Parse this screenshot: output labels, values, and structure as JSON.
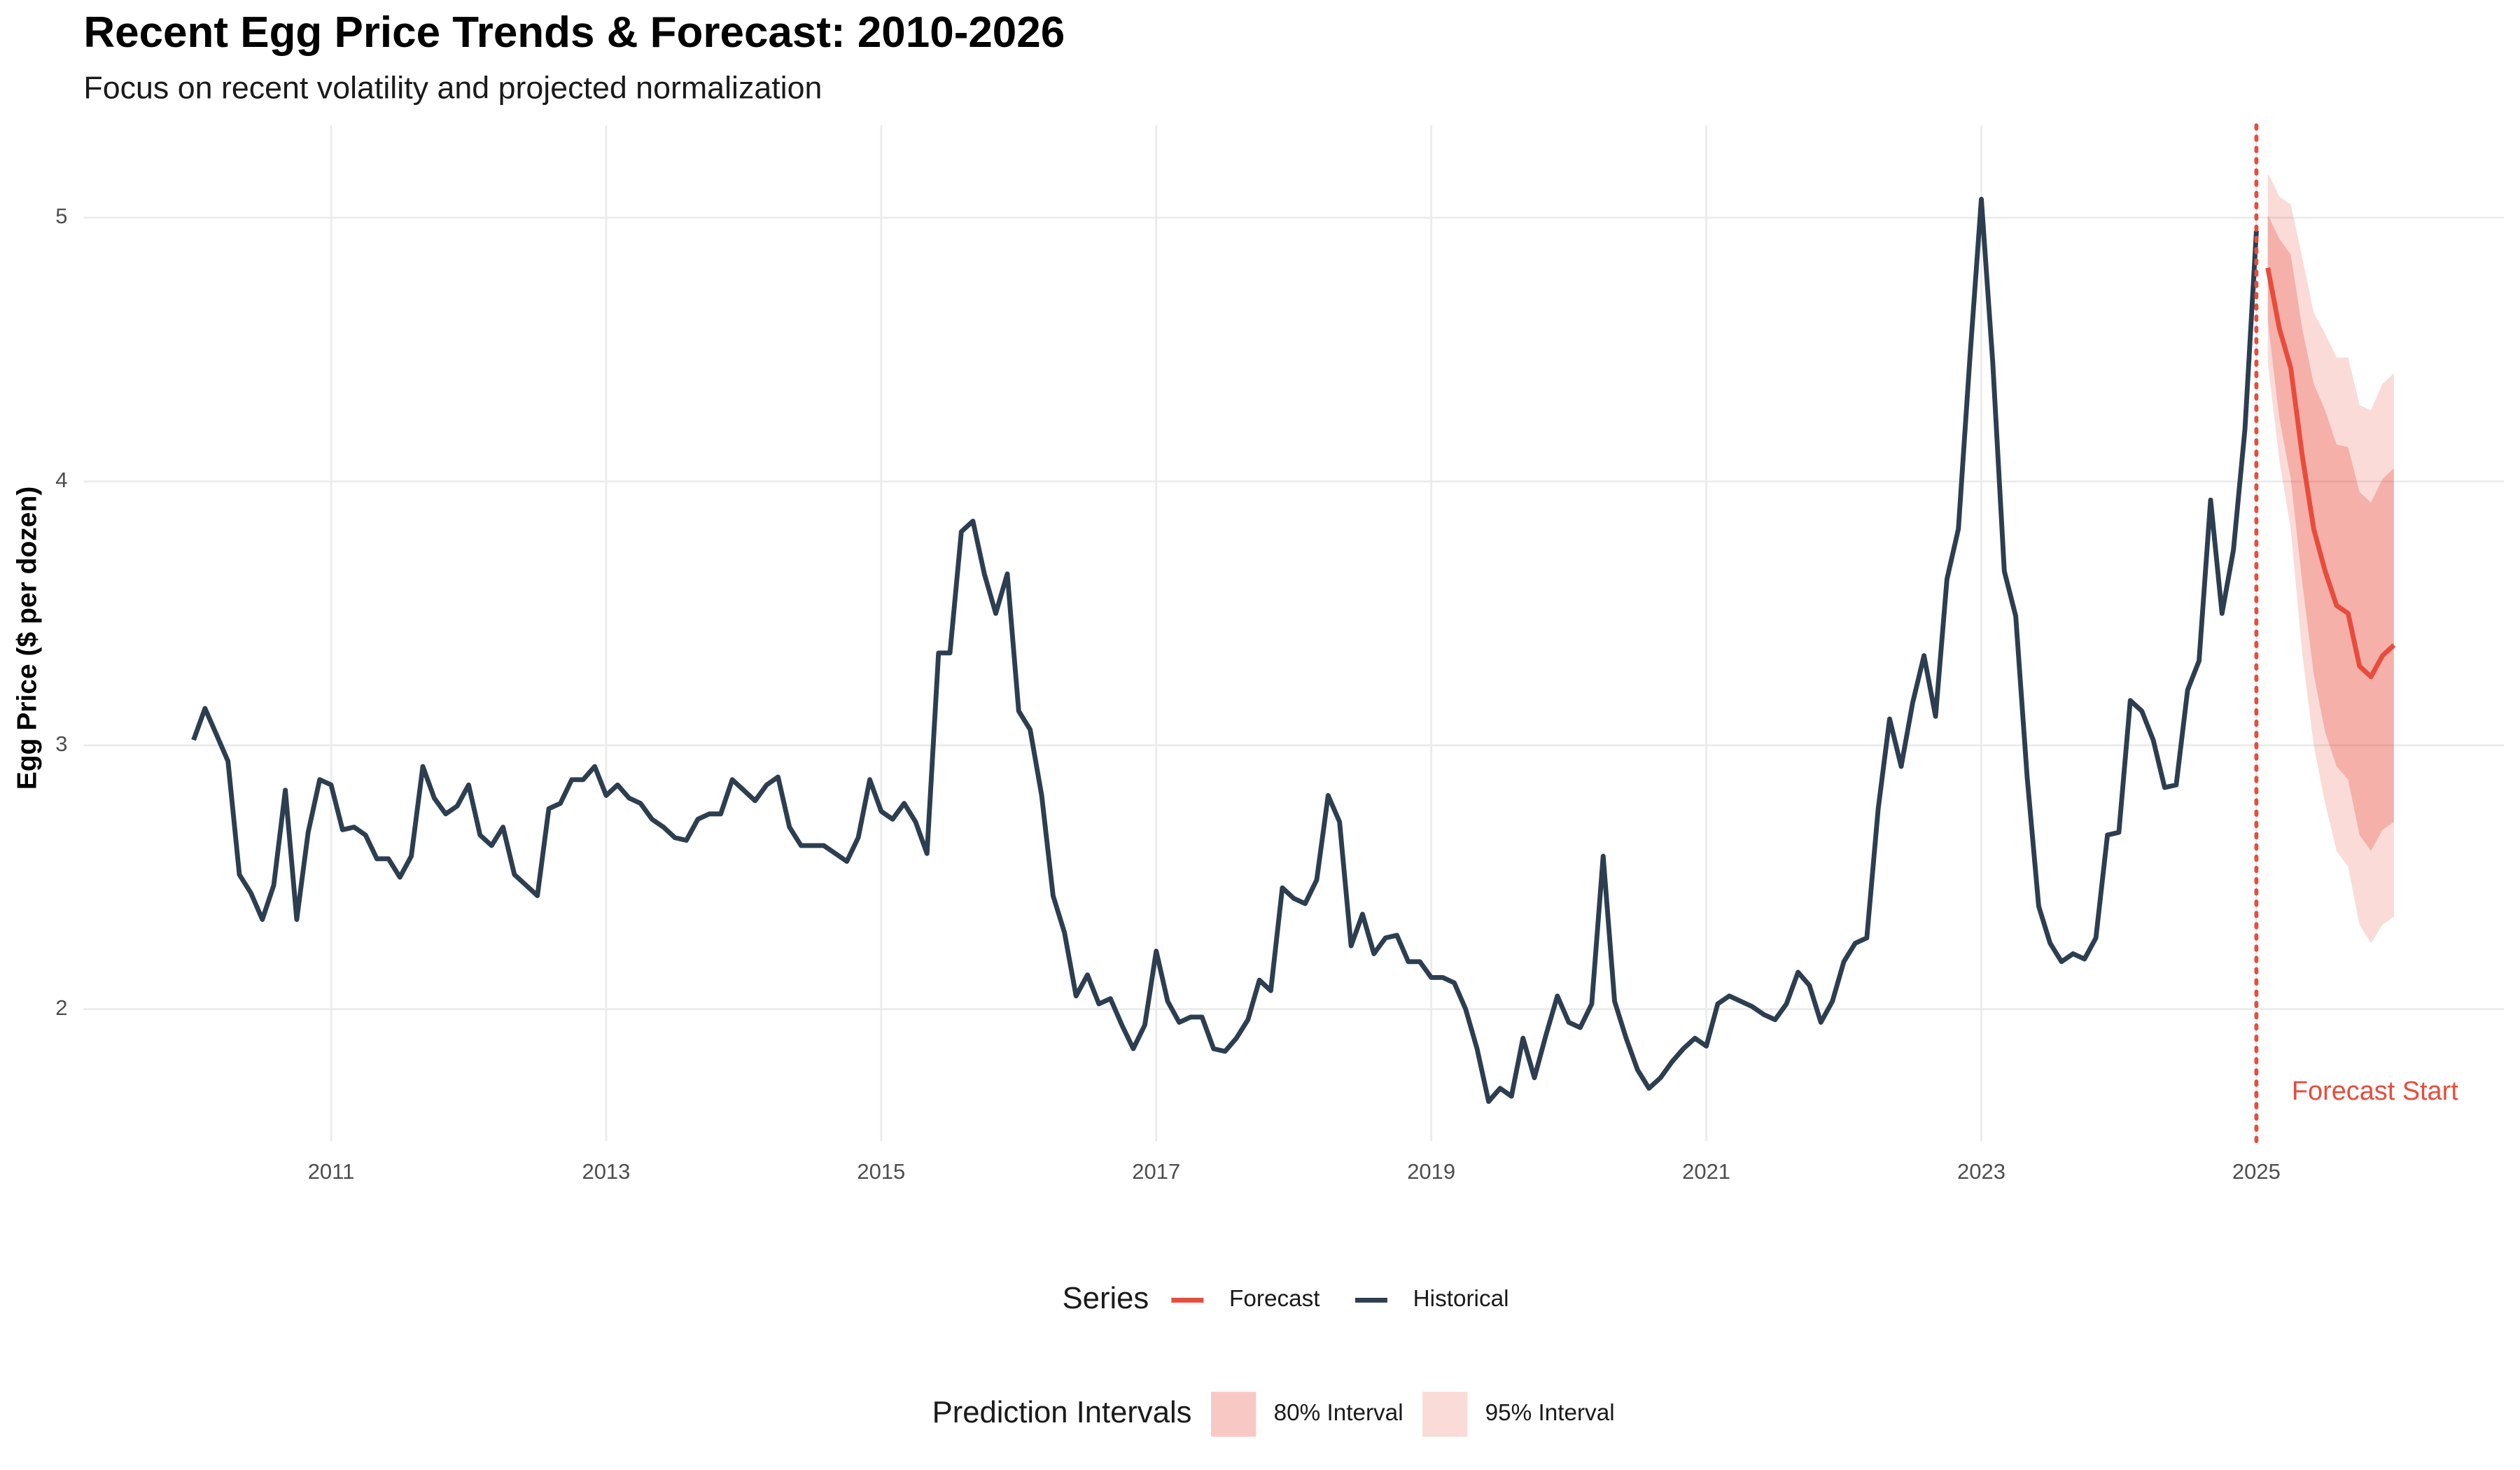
{
  "chart_data": {
    "type": "line",
    "title": "Recent Egg Price Trends & Forecast: 2010-2026",
    "subtitle": "Focus on recent volatility and projected normalization",
    "y_label": "Egg Price ($ per dozen)",
    "xlim": [
      2009.2,
      2026.8
    ],
    "ylim": [
      1.5,
      5.35
    ],
    "xticks": [
      2011,
      2013,
      2015,
      2017,
      2019,
      2021,
      2023,
      2025
    ],
    "yticks": [
      2,
      3,
      4,
      5
    ],
    "grid": true,
    "legend_title": "Series",
    "series": [
      {
        "name": "Forecast",
        "color": "#e74c3c",
        "x": [
          2025.083,
          2025.167,
          2025.25,
          2025.333,
          2025.417,
          2025.5,
          2025.583,
          2025.667,
          2025.75,
          2025.833,
          2025.917,
          2026
        ],
        "values": [
          4.81,
          4.58,
          4.43,
          4.1,
          3.82,
          3.66,
          3.53,
          3.5,
          3.3,
          3.26,
          3.34,
          3.38
        ]
      },
      {
        "name": "Historical",
        "color": "#2c3e50",
        "x": [
          2010,
          2010.083,
          2010.167,
          2010.25,
          2010.333,
          2010.417,
          2010.5,
          2010.583,
          2010.667,
          2010.75,
          2010.833,
          2010.917,
          2011,
          2011.083,
          2011.167,
          2011.25,
          2011.333,
          2011.417,
          2011.5,
          2011.583,
          2011.667,
          2011.75,
          2011.833,
          2011.917,
          2012,
          2012.083,
          2012.167,
          2012.25,
          2012.333,
          2012.417,
          2012.5,
          2012.583,
          2012.667,
          2012.75,
          2012.833,
          2012.917,
          2013,
          2013.083,
          2013.167,
          2013.25,
          2013.333,
          2013.417,
          2013.5,
          2013.583,
          2013.667,
          2013.75,
          2013.833,
          2013.917,
          2014,
          2014.083,
          2014.167,
          2014.25,
          2014.333,
          2014.417,
          2014.5,
          2014.583,
          2014.667,
          2014.75,
          2014.833,
          2014.917,
          2015,
          2015.083,
          2015.167,
          2015.25,
          2015.333,
          2015.417,
          2015.5,
          2015.583,
          2015.667,
          2015.75,
          2015.833,
          2015.917,
          2016,
          2016.083,
          2016.167,
          2016.25,
          2016.333,
          2016.417,
          2016.5,
          2016.583,
          2016.667,
          2016.75,
          2016.833,
          2016.917,
          2017,
          2017.083,
          2017.167,
          2017.25,
          2017.333,
          2017.417,
          2017.5,
          2017.583,
          2017.667,
          2017.75,
          2017.833,
          2017.917,
          2018,
          2018.083,
          2018.167,
          2018.25,
          2018.333,
          2018.417,
          2018.5,
          2018.583,
          2018.667,
          2018.75,
          2018.833,
          2018.917,
          2019,
          2019.083,
          2019.167,
          2019.25,
          2019.333,
          2019.417,
          2019.5,
          2019.583,
          2019.667,
          2019.75,
          2019.833,
          2019.917,
          2020,
          2020.083,
          2020.167,
          2020.25,
          2020.333,
          2020.417,
          2020.5,
          2020.583,
          2020.667,
          2020.75,
          2020.833,
          2020.917,
          2021,
          2021.083,
          2021.167,
          2021.25,
          2021.333,
          2021.417,
          2021.5,
          2021.583,
          2021.667,
          2021.75,
          2021.833,
          2021.917,
          2022,
          2022.083,
          2022.167,
          2022.25,
          2022.333,
          2022.417,
          2022.5,
          2022.583,
          2022.667,
          2022.75,
          2022.833,
          2022.917,
          2023,
          2023.083,
          2023.167,
          2023.25,
          2023.333,
          2023.417,
          2023.5,
          2023.583,
          2023.667,
          2023.75,
          2023.833,
          2023.917,
          2024,
          2024.083,
          2024.167,
          2024.25,
          2024.333,
          2024.417,
          2024.5,
          2024.583,
          2024.667,
          2024.75,
          2024.833,
          2024.917,
          2025
        ],
        "values": [
          3.02,
          3.14,
          3.04,
          2.94,
          2.51,
          2.44,
          2.34,
          2.47,
          2.83,
          2.34,
          2.67,
          2.87,
          2.85,
          2.68,
          2.69,
          2.66,
          2.57,
          2.57,
          2.5,
          2.58,
          2.92,
          2.8,
          2.74,
          2.77,
          2.85,
          2.66,
          2.62,
          2.69,
          2.51,
          2.47,
          2.43,
          2.76,
          2.78,
          2.87,
          2.87,
          2.92,
          2.81,
          2.85,
          2.8,
          2.78,
          2.72,
          2.69,
          2.65,
          2.64,
          2.72,
          2.74,
          2.74,
          2.87,
          2.83,
          2.79,
          2.85,
          2.88,
          2.69,
          2.62,
          2.62,
          2.62,
          2.59,
          2.56,
          2.65,
          2.87,
          2.75,
          2.72,
          2.78,
          2.71,
          2.59,
          3.35,
          3.35,
          3.81,
          3.85,
          3.65,
          3.5,
          3.65,
          3.13,
          3.06,
          2.81,
          2.43,
          2.29,
          2.05,
          2.13,
          2.02,
          2.04,
          1.94,
          1.85,
          1.94,
          2.22,
          2.03,
          1.95,
          1.97,
          1.97,
          1.85,
          1.84,
          1.89,
          1.96,
          2.11,
          2.07,
          2.46,
          2.42,
          2.4,
          2.49,
          2.81,
          2.71,
          2.24,
          2.36,
          2.21,
          2.27,
          2.28,
          2.18,
          2.18,
          2.12,
          2.12,
          2.1,
          2.0,
          1.85,
          1.65,
          1.7,
          1.67,
          1.89,
          1.74,
          1.9,
          2.05,
          1.95,
          1.93,
          2.02,
          2.58,
          2.03,
          1.89,
          1.77,
          1.7,
          1.74,
          1.8,
          1.85,
          1.89,
          1.86,
          2.02,
          2.05,
          2.03,
          2.01,
          1.98,
          1.96,
          2.02,
          2.14,
          2.09,
          1.95,
          2.03,
          2.18,
          2.25,
          2.27,
          2.76,
          3.1,
          2.92,
          3.16,
          3.34,
          3.11,
          3.63,
          3.82,
          4.47,
          5.07,
          4.45,
          3.66,
          3.49,
          2.88,
          2.39,
          2.25,
          2.18,
          2.21,
          2.19,
          2.27,
          2.66,
          2.67,
          3.17,
          3.13,
          3.02,
          2.84,
          2.85,
          3.21,
          3.32,
          3.93,
          3.5,
          3.74,
          4.2,
          4.95
        ]
      }
    ],
    "intervals_title": "Prediction Intervals",
    "intervals": [
      {
        "name": "80% Interval",
        "color": "#e74c3c",
        "alpha": 0.3,
        "x": [
          2025.083,
          2025.167,
          2025.25,
          2025.333,
          2025.417,
          2025.5,
          2025.583,
          2025.667,
          2025.75,
          2025.833,
          2025.917,
          2026
        ],
        "lower": [
          4.61,
          4.24,
          4.01,
          3.62,
          3.27,
          3.05,
          2.92,
          2.87,
          2.66,
          2.6,
          2.68,
          2.71
        ],
        "upper": [
          5.01,
          4.92,
          4.86,
          4.58,
          4.37,
          4.27,
          4.14,
          4.13,
          3.96,
          3.92,
          4.01,
          4.05
        ]
      },
      {
        "name": "95% Interval",
        "color": "#e74c3c",
        "alpha": 0.2,
        "x": [
          2025.083,
          2025.167,
          2025.25,
          2025.333,
          2025.417,
          2025.5,
          2025.583,
          2025.667,
          2025.75,
          2025.833,
          2025.917,
          2026
        ],
        "lower": [
          4.45,
          4.08,
          3.82,
          3.35,
          3.0,
          2.78,
          2.6,
          2.54,
          2.32,
          2.25,
          2.32,
          2.35
        ],
        "upper": [
          5.17,
          5.08,
          5.05,
          4.85,
          4.64,
          4.56,
          4.47,
          4.47,
          4.29,
          4.27,
          4.37,
          4.41
        ]
      }
    ],
    "vline": {
      "x": 2025,
      "label": "Forecast Start",
      "color": "#e74c3c"
    }
  }
}
